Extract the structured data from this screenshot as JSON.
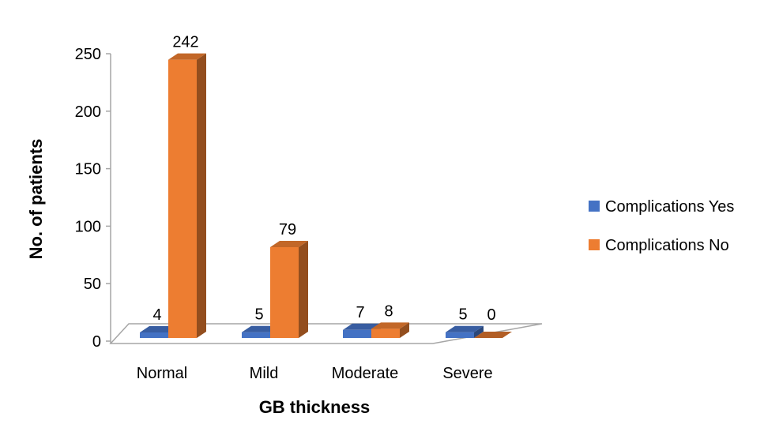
{
  "chart_data": {
    "type": "bar",
    "style": "3d-clustered-column",
    "title": "",
    "xlabel": "GB thickness",
    "ylabel": "No. of patients",
    "categories": [
      "Normal",
      "Mild",
      "Moderate",
      "Severe"
    ],
    "series": [
      {
        "name": "Complications Yes",
        "values": [
          4,
          5,
          7,
          5
        ],
        "color": "#4472C4"
      },
      {
        "name": "Complications No",
        "values": [
          242,
          79,
          8,
          0
        ],
        "color": "#ED7D31"
      }
    ],
    "ylim": [
      0,
      250
    ],
    "yticks": [
      "0",
      "50",
      "100",
      "150",
      "200",
      "250"
    ],
    "grid": false,
    "legend_position": "right"
  }
}
